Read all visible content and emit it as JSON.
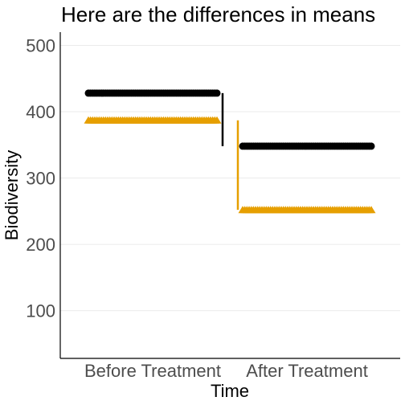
{
  "chart_data": {
    "type": "scatter",
    "title": "Here are the differences in means",
    "xlabel": "Time",
    "ylabel": "Biodiversity",
    "categories": [
      "Before Treatment",
      "After Treatment"
    ],
    "ylim": [
      28,
      520
    ],
    "yticks": [
      100,
      200,
      300,
      400,
      500
    ],
    "grid": "horizontal",
    "series": [
      {
        "marker": "circle",
        "color": "#000000",
        "values": [
          428,
          348
        ]
      },
      {
        "marker": "triangle",
        "color": "#E69F00",
        "values": [
          387,
          252
        ]
      }
    ],
    "differences": [
      {
        "category": "Before Treatment",
        "from": 428,
        "to": 348,
        "color": "#000000"
      },
      {
        "category": "After Treatment",
        "from": 387,
        "to": 252,
        "color": "#E69F00"
      }
    ]
  }
}
